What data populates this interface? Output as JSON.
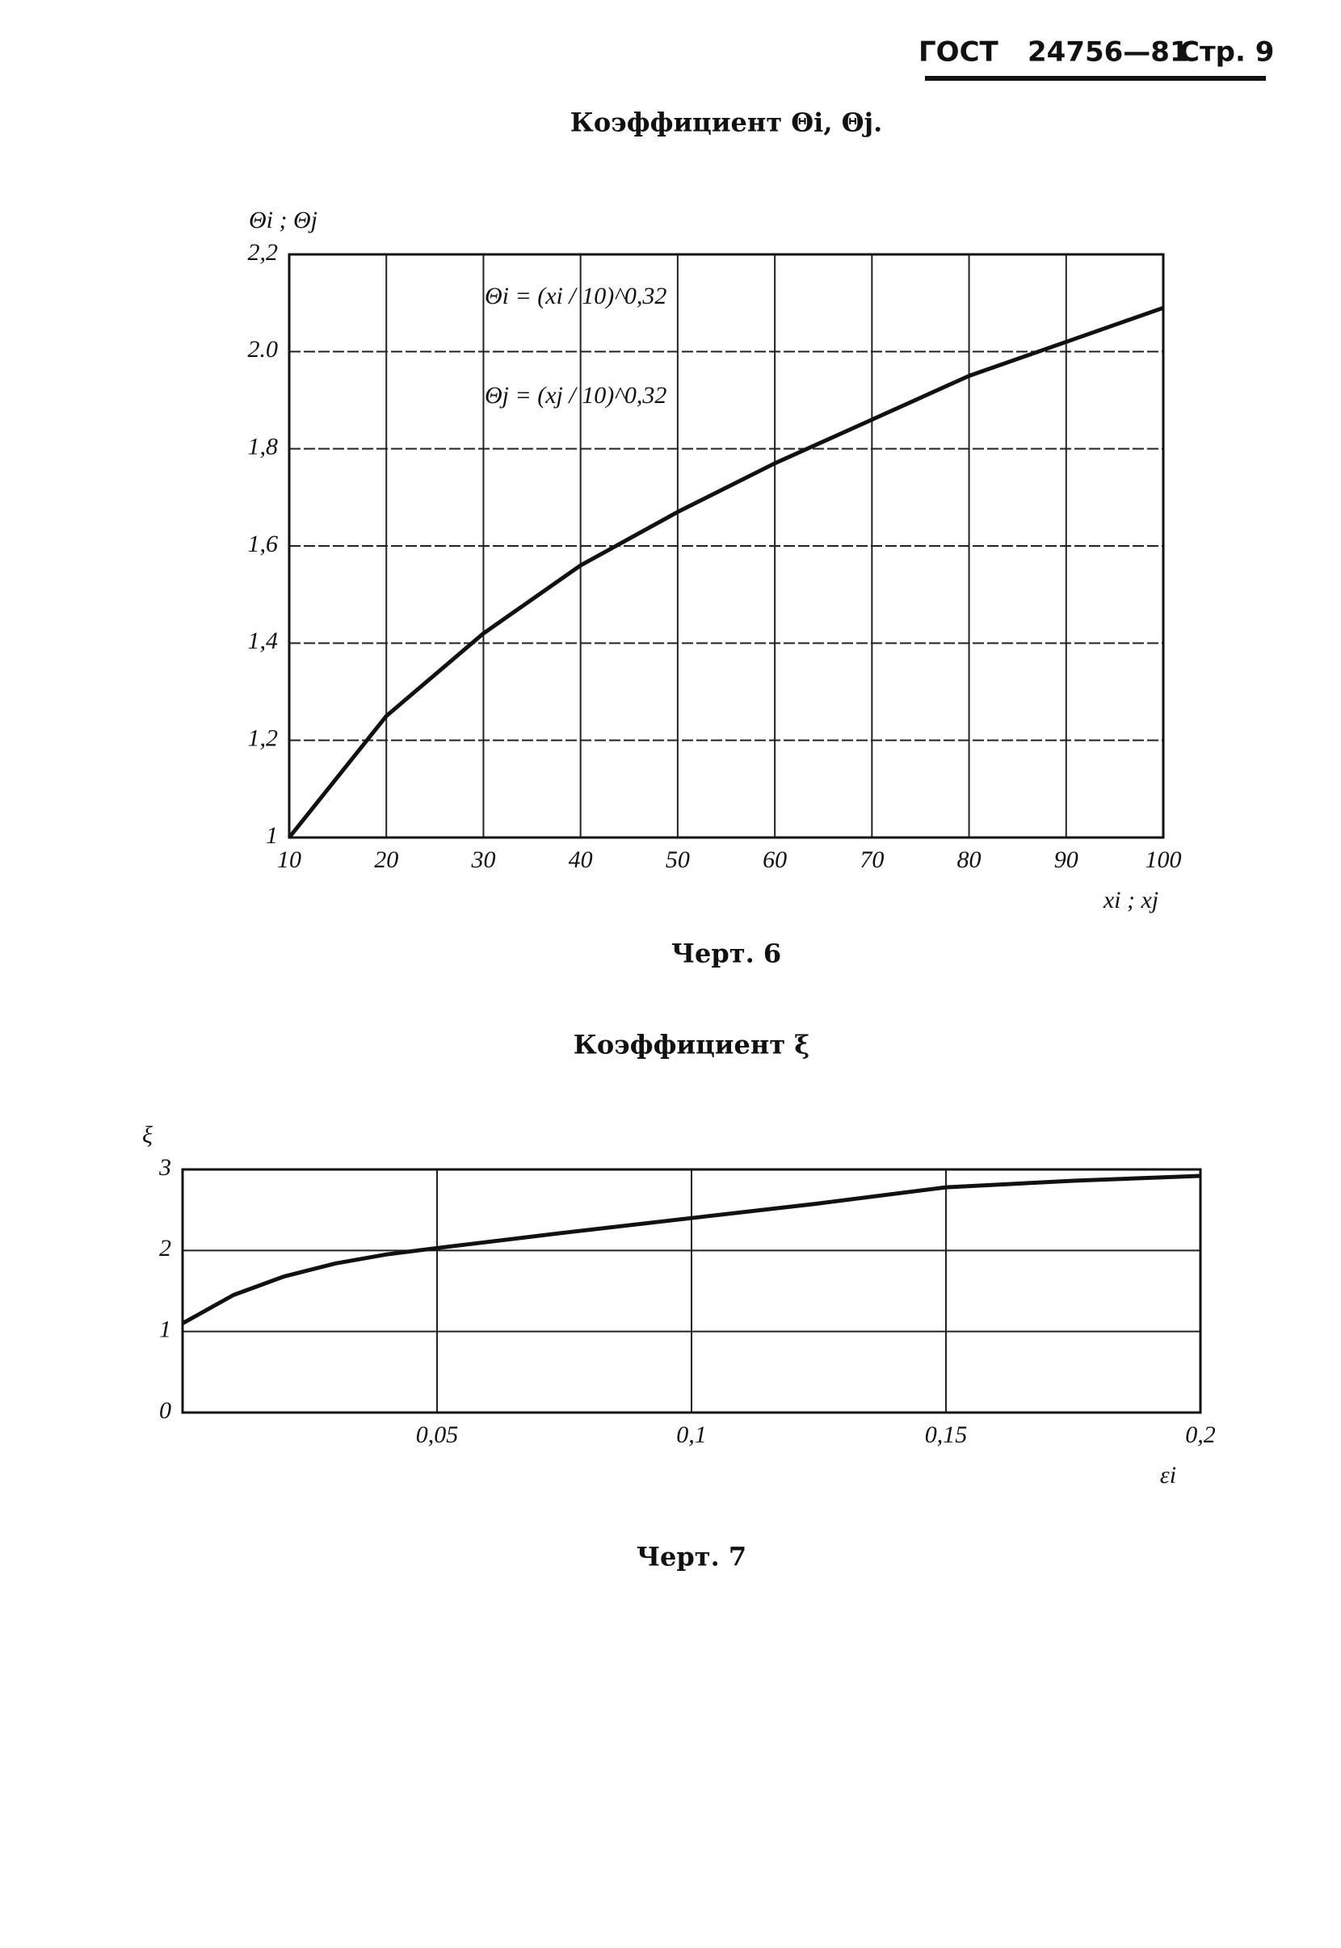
{
  "header": {
    "doc": "ГОСТ",
    "number": "24756—81",
    "page": "Стр. 9"
  },
  "chart_data": [
    {
      "type": "line",
      "title": "Коэффициент Θi, Θj.",
      "caption": "Черт. 6",
      "xlabel": "xi ; xj",
      "ylabel": "Θi ; Θj",
      "annotations": [
        "Θi = (xi / 10)^0,32",
        "Θj = (xj / 10)^0,32"
      ],
      "x": [
        10,
        20,
        30,
        40,
        50,
        60,
        70,
        80,
        90,
        100
      ],
      "values": [
        1,
        1.25,
        1.42,
        1.56,
        1.67,
        1.77,
        1.86,
        1.95,
        2.02,
        2.09
      ],
      "color": "#111111",
      "xlim": [
        10,
        100
      ],
      "ylim": [
        1,
        2.2
      ],
      "xticks": [
        10,
        20,
        30,
        40,
        50,
        60,
        70,
        80,
        90,
        100
      ],
      "yticks": [
        1,
        {
          "value": 1.2,
          "label": "1,2"
        },
        {
          "value": 1.4,
          "label": "1,4"
        },
        {
          "value": 1.6,
          "label": "1,6"
        },
        {
          "value": 1.8,
          "label": "1,8"
        },
        {
          "value": 2,
          "label": "2.0"
        },
        {
          "value": 2.2,
          "label": "2,2"
        }
      ],
      "grid": true
    },
    {
      "type": "line",
      "title": "Коэффициент ξ",
      "caption": "Черт. 7",
      "xlabel": "εi",
      "ylabel": "ξ",
      "x": [
        0,
        0.01,
        0.02,
        0.03,
        0.04,
        0.05,
        0.075,
        0.1,
        0.125,
        0.15,
        0.175,
        0.2
      ],
      "values": [
        1.1,
        1.45,
        1.68,
        1.84,
        1.95,
        2.03,
        2.22,
        2.4,
        2.58,
        2.78,
        2.86,
        2.92
      ],
      "color": "#111111",
      "xlim": [
        0,
        0.2
      ],
      "ylim": [
        0,
        3
      ],
      "xticks": [
        {
          "value": 0.05,
          "label": "0,05"
        },
        {
          "value": 0.1,
          "label": "0,1"
        },
        {
          "value": 0.15,
          "label": "0,15"
        },
        {
          "value": 0.2,
          "label": "0,2"
        }
      ],
      "yticks": [
        0,
        1,
        2,
        3
      ],
      "grid": true
    }
  ]
}
